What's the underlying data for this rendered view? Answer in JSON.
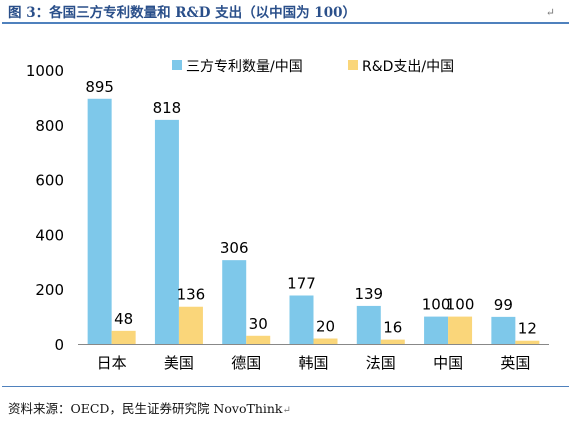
{
  "figure": {
    "title": "图 3：各国三方专利数量和 R&D 支出（以中国为 100）",
    "source": "资料来源：OECD，民生证券研究院 NovoThink"
  },
  "colors": {
    "patents": "#7ec8ea",
    "rnd": "#fad67a",
    "title": "#2a4f8a",
    "rule": "#4f81bd"
  },
  "chart_data": {
    "type": "bar",
    "categories": [
      "日本",
      "美国",
      "德国",
      "韩国",
      "法国",
      "中国",
      "英国"
    ],
    "series": [
      {
        "name": "三方专利数量/中国",
        "values": [
          895,
          818,
          306,
          177,
          139,
          100,
          99
        ]
      },
      {
        "name": "R&D支出/中国",
        "values": [
          48,
          136,
          30,
          20,
          16,
          100,
          12
        ]
      }
    ],
    "ylim": [
      0,
      1000
    ],
    "yticks": [
      0,
      200,
      400,
      600,
      800,
      1000
    ],
    "grid": false,
    "legend": "top-center",
    "data_labels": true
  }
}
